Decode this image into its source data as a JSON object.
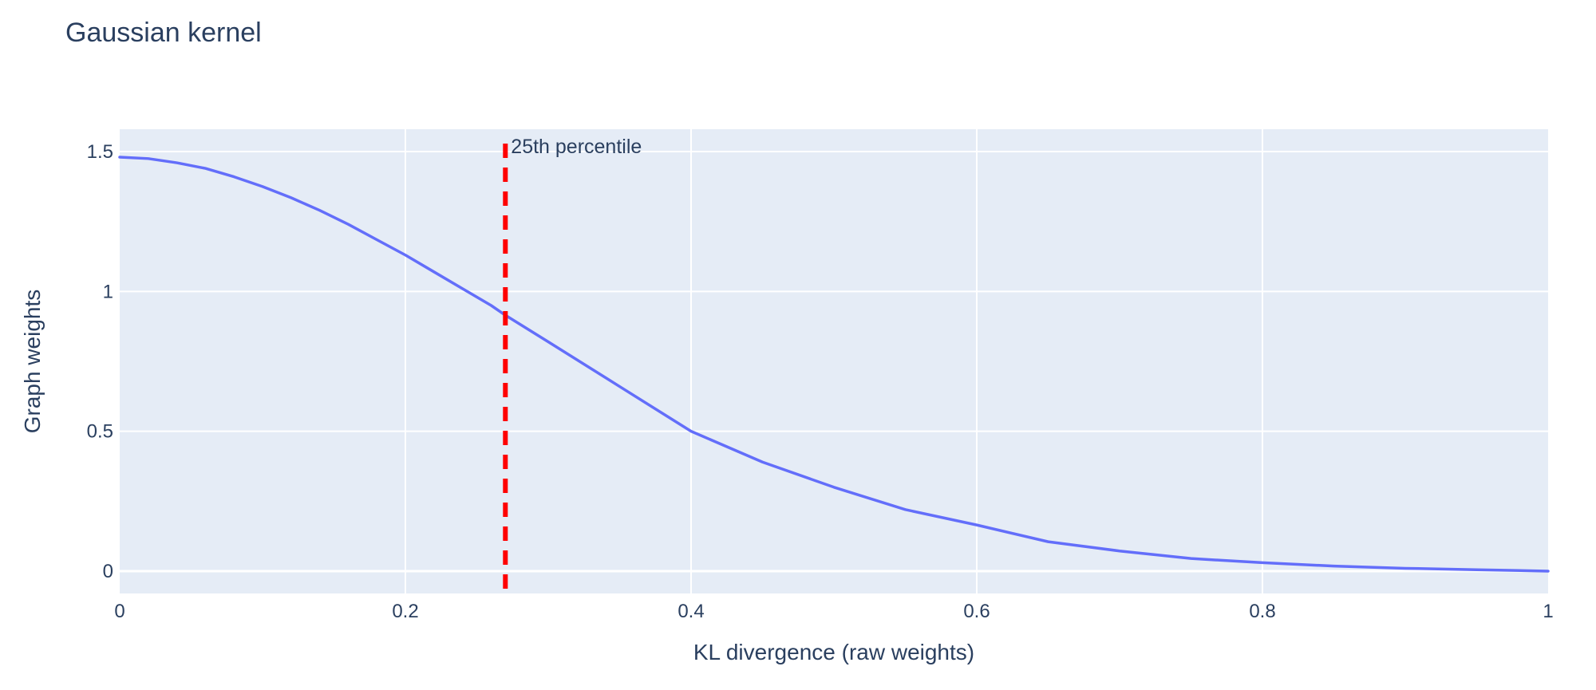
{
  "chart_data": {
    "type": "line",
    "title": "Gaussian kernel",
    "xlabel": "KL divergence (raw weights)",
    "ylabel": "Graph weights",
    "xlim": [
      0,
      1
    ],
    "ylim": [
      -0.08,
      1.58
    ],
    "x_ticks": [
      0,
      0.2,
      0.4,
      0.6,
      0.8,
      1
    ],
    "x_tick_labels": [
      "0",
      "0.2",
      "0.4",
      "0.6",
      "0.8",
      "1"
    ],
    "y_ticks": [
      0,
      0.5,
      1,
      1.5
    ],
    "y_tick_labels": [
      "0",
      "0.5",
      "1",
      "1.5"
    ],
    "grid": true,
    "series": [
      {
        "color": "#636efa",
        "x": [
          0,
          0.02,
          0.04,
          0.06,
          0.08,
          0.1,
          0.12,
          0.14,
          0.16,
          0.18,
          0.2,
          0.22,
          0.24,
          0.26,
          0.27,
          0.3,
          0.35,
          0.4,
          0.45,
          0.5,
          0.55,
          0.6,
          0.65,
          0.7,
          0.75,
          0.8,
          0.85,
          0.9,
          0.95,
          1
        ],
        "y": [
          1.48,
          1.475,
          1.46,
          1.44,
          1.41,
          1.375,
          1.335,
          1.29,
          1.24,
          1.185,
          1.13,
          1.07,
          1.01,
          0.95,
          0.915,
          0.82,
          0.66,
          0.5,
          0.39,
          0.3,
          0.22,
          0.165,
          0.105,
          0.072,
          0.045,
          0.03,
          0.018,
          0.01,
          0.005,
          0.0
        ]
      }
    ],
    "vline": {
      "x": 0.27,
      "color": "#ff0000",
      "style": "dashed",
      "label": "25th percentile"
    },
    "plot_background": "#e5ecf6",
    "grid_color": "#ffffff"
  }
}
